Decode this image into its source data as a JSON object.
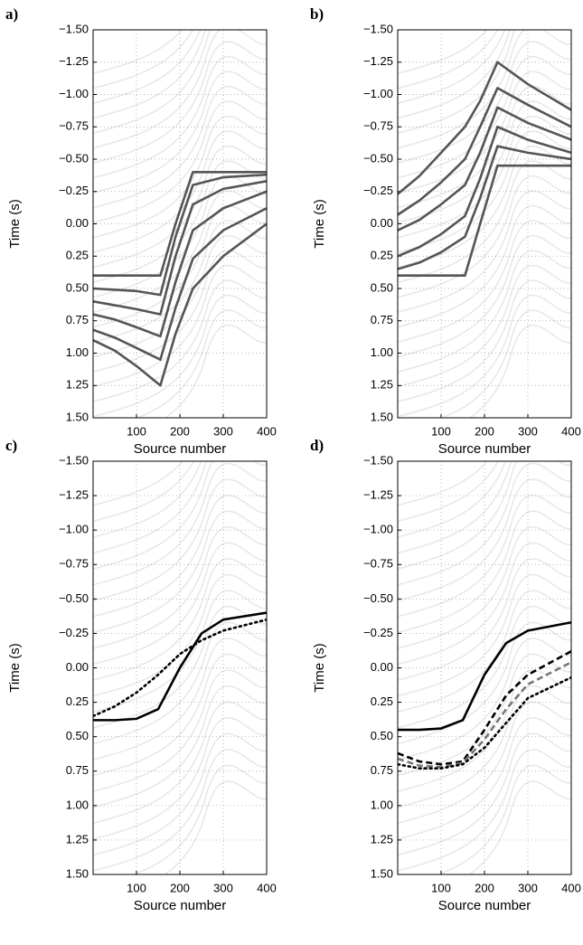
{
  "chart_data": [
    {
      "type": "line",
      "label": "a)",
      "xlabel": "Source number",
      "ylabel": "Time (s)",
      "x": [
        0,
        50,
        100,
        155,
        190,
        230,
        300,
        400
      ],
      "series": [
        {
          "color": "#555555",
          "dash": "solid",
          "values": [
            0.4,
            0.4,
            0.4,
            0.4,
            0.0,
            -0.4,
            -0.4,
            -0.4
          ]
        },
        {
          "color": "#555555",
          "dash": "solid",
          "values": [
            0.5,
            0.51,
            0.52,
            0.55,
            0.1,
            -0.3,
            -0.36,
            -0.38
          ]
        },
        {
          "color": "#555555",
          "dash": "solid",
          "values": [
            0.6,
            0.63,
            0.66,
            0.7,
            0.25,
            -0.15,
            -0.27,
            -0.33
          ]
        },
        {
          "color": "#555555",
          "dash": "solid",
          "values": [
            0.7,
            0.74,
            0.8,
            0.87,
            0.45,
            0.05,
            -0.12,
            -0.25
          ]
        },
        {
          "color": "#555555",
          "dash": "solid",
          "values": [
            0.82,
            0.88,
            0.96,
            1.05,
            0.65,
            0.27,
            0.05,
            -0.12
          ]
        },
        {
          "color": "#555555",
          "dash": "solid",
          "values": [
            0.9,
            0.98,
            1.1,
            1.25,
            0.85,
            0.5,
            0.25,
            0.0
          ]
        }
      ],
      "xlim": [
        0,
        400
      ],
      "ylim": [
        -1.5,
        1.5
      ],
      "inverted_y": true,
      "grid": true,
      "xticks": [
        100,
        200,
        300,
        400
      ],
      "yticks": [
        {
          "value": -1.5,
          "label": "−1.50"
        },
        {
          "value": -1.25,
          "label": "−1.25"
        },
        {
          "value": -1.0,
          "label": "−1.00"
        },
        {
          "value": -0.75,
          "label": "−0.75"
        },
        {
          "value": -0.5,
          "label": "−0.50"
        },
        {
          "value": -0.25,
          "label": "−0.25"
        },
        {
          "value": 0,
          "label": "0.00"
        },
        {
          "value": 0.25,
          "label": "0.25"
        },
        {
          "value": 0.5,
          "label": "0.50"
        },
        {
          "value": 0.75,
          "label": "0.75"
        },
        {
          "value": 1.0,
          "label": "1.00"
        },
        {
          "value": 1.25,
          "label": "1.25"
        },
        {
          "value": 1.5,
          "label": "1.50"
        }
      ]
    },
    {
      "type": "line",
      "label": "b)",
      "xlabel": "Source number",
      "ylabel": "Time (s)",
      "x": [
        0,
        50,
        100,
        155,
        190,
        230,
        300,
        400
      ],
      "series": [
        {
          "color": "#555555",
          "dash": "solid",
          "values": [
            0.4,
            0.4,
            0.4,
            0.4,
            0.0,
            -0.45,
            -0.45,
            -0.45
          ]
        },
        {
          "color": "#555555",
          "dash": "solid",
          "values": [
            0.35,
            0.3,
            0.22,
            0.1,
            -0.2,
            -0.6,
            -0.55,
            -0.5
          ]
        },
        {
          "color": "#555555",
          "dash": "solid",
          "values": [
            0.25,
            0.18,
            0.08,
            -0.06,
            -0.35,
            -0.75,
            -0.65,
            -0.55
          ]
        },
        {
          "color": "#555555",
          "dash": "solid",
          "values": [
            0.05,
            -0.03,
            -0.15,
            -0.3,
            -0.55,
            -0.9,
            -0.78,
            -0.65
          ]
        },
        {
          "color": "#555555",
          "dash": "solid",
          "values": [
            -0.07,
            -0.18,
            -0.32,
            -0.5,
            -0.75,
            -1.05,
            -0.92,
            -0.75
          ]
        },
        {
          "color": "#555555",
          "dash": "solid",
          "values": [
            -0.23,
            -0.37,
            -0.55,
            -0.75,
            -0.95,
            -1.25,
            -1.08,
            -0.88
          ]
        }
      ],
      "xlim": [
        0,
        400
      ],
      "ylim": [
        -1.5,
        1.5
      ],
      "inverted_y": true,
      "grid": true,
      "xticks": [
        100,
        200,
        300,
        400
      ],
      "yticks": [
        {
          "value": -1.5,
          "label": "−1.50"
        },
        {
          "value": -1.25,
          "label": "−1.25"
        },
        {
          "value": -1.0,
          "label": "−1.00"
        },
        {
          "value": -0.75,
          "label": "−0.75"
        },
        {
          "value": -0.5,
          "label": "−0.50"
        },
        {
          "value": -0.25,
          "label": "−0.25"
        },
        {
          "value": 0,
          "label": "0.00"
        },
        {
          "value": 0.25,
          "label": "0.25"
        },
        {
          "value": 0.5,
          "label": "0.50"
        },
        {
          "value": 0.75,
          "label": "0.75"
        },
        {
          "value": 1.0,
          "label": "1.00"
        },
        {
          "value": 1.25,
          "label": "1.25"
        },
        {
          "value": 1.5,
          "label": "1.50"
        }
      ]
    },
    {
      "type": "line",
      "label": "c)",
      "xlabel": "Source number",
      "ylabel": "Time (s)",
      "x": [
        0,
        50,
        100,
        150,
        200,
        250,
        300,
        400
      ],
      "series": [
        {
          "color": "#000000",
          "dash": "solid",
          "values": [
            0.38,
            0.38,
            0.37,
            0.3,
            0.0,
            -0.25,
            -0.35,
            -0.4
          ]
        },
        {
          "color": "#000000",
          "dash": "dotted",
          "values": [
            0.35,
            0.28,
            0.18,
            0.05,
            -0.1,
            -0.2,
            -0.27,
            -0.35
          ]
        }
      ],
      "xlim": [
        0,
        400
      ],
      "ylim": [
        -1.5,
        1.5
      ],
      "inverted_y": true,
      "grid": true,
      "xticks": [
        100,
        200,
        300,
        400
      ],
      "yticks": [
        {
          "value": -1.5,
          "label": "−1.50"
        },
        {
          "value": -1.25,
          "label": "−1.25"
        },
        {
          "value": -1.0,
          "label": "−1.00"
        },
        {
          "value": -0.75,
          "label": "−0.75"
        },
        {
          "value": -0.5,
          "label": "−0.50"
        },
        {
          "value": -0.25,
          "label": "−0.25"
        },
        {
          "value": 0,
          "label": "0.00"
        },
        {
          "value": 0.25,
          "label": "0.25"
        },
        {
          "value": 0.5,
          "label": "0.50"
        },
        {
          "value": 0.75,
          "label": "0.75"
        },
        {
          "value": 1.0,
          "label": "1.00"
        },
        {
          "value": 1.25,
          "label": "1.25"
        },
        {
          "value": 1.5,
          "label": "1.50"
        }
      ]
    },
    {
      "type": "line",
      "label": "d)",
      "xlabel": "Source number",
      "ylabel": "Time (s)",
      "x": [
        0,
        50,
        100,
        150,
        200,
        250,
        300,
        400
      ],
      "series": [
        {
          "color": "#000000",
          "dash": "solid",
          "values": [
            0.45,
            0.45,
            0.44,
            0.38,
            0.05,
            -0.18,
            -0.27,
            -0.33
          ]
        },
        {
          "color": "#000000",
          "dash": "dashed",
          "values": [
            0.62,
            0.68,
            0.7,
            0.68,
            0.45,
            0.2,
            0.05,
            -0.12
          ]
        },
        {
          "color": "#777777",
          "dash": "dashed",
          "values": [
            0.66,
            0.71,
            0.72,
            0.69,
            0.52,
            0.3,
            0.12,
            -0.04
          ]
        },
        {
          "color": "#000000",
          "dash": "dotted",
          "values": [
            0.7,
            0.73,
            0.73,
            0.7,
            0.58,
            0.4,
            0.22,
            0.07
          ]
        }
      ],
      "xlim": [
        0,
        400
      ],
      "ylim": [
        -1.5,
        1.5
      ],
      "inverted_y": true,
      "grid": true,
      "xticks": [
        100,
        200,
        300,
        400
      ],
      "yticks": [
        {
          "value": -1.5,
          "label": "−1.50"
        },
        {
          "value": -1.25,
          "label": "−1.25"
        },
        {
          "value": -1.0,
          "label": "−1.00"
        },
        {
          "value": -0.75,
          "label": "−0.75"
        },
        {
          "value": -0.5,
          "label": "−0.50"
        },
        {
          "value": -0.25,
          "label": "−0.25"
        },
        {
          "value": 0,
          "label": "0.00"
        },
        {
          "value": 0.25,
          "label": "0.25"
        },
        {
          "value": 0.5,
          "label": "0.50"
        },
        {
          "value": 0.75,
          "label": "0.75"
        },
        {
          "value": 1.0,
          "label": "1.00"
        },
        {
          "value": 1.25,
          "label": "1.25"
        },
        {
          "value": 1.5,
          "label": "1.50"
        }
      ]
    }
  ]
}
